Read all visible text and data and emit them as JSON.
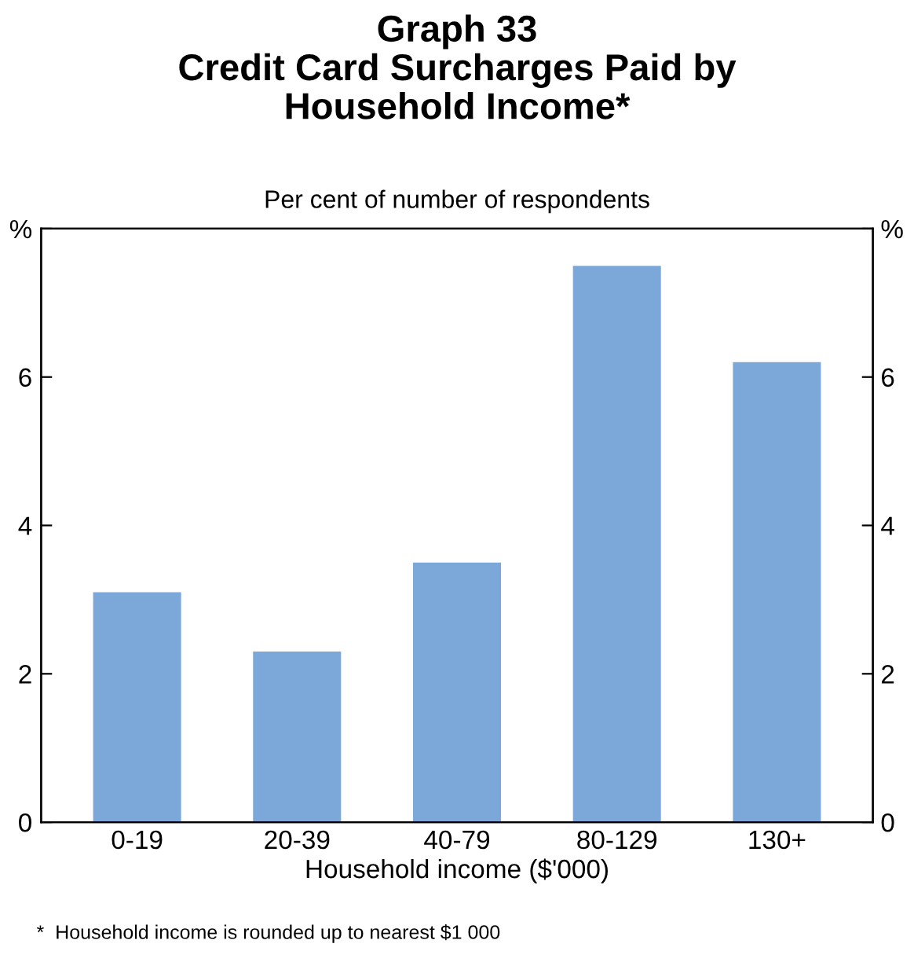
{
  "chart_data": {
    "type": "bar",
    "title": "Graph 33\nCredit Card Surcharges Paid by\nHousehold Income*",
    "subtitle": "Per cent of number of respondents",
    "xlabel": "Household income ($'000)",
    "categories": [
      "0-19",
      "20-39",
      "40-79",
      "80-129",
      "130+"
    ],
    "values": [
      3.1,
      2.3,
      3.5,
      7.5,
      6.2
    ],
    "color": "#7ba7d9",
    "ylim": [
      0,
      8
    ],
    "yticks": [
      0,
      2,
      4,
      6,
      {
        "value": 8,
        "label": "%"
      }
    ],
    "y2lim": [
      0,
      8
    ],
    "y2ticks": [
      0,
      2,
      4,
      6,
      {
        "value": 8,
        "label": "%"
      }
    ],
    "grid": false,
    "legend": false,
    "annotations": [
      "*  Household income is rounded up to nearest $1 000"
    ]
  }
}
